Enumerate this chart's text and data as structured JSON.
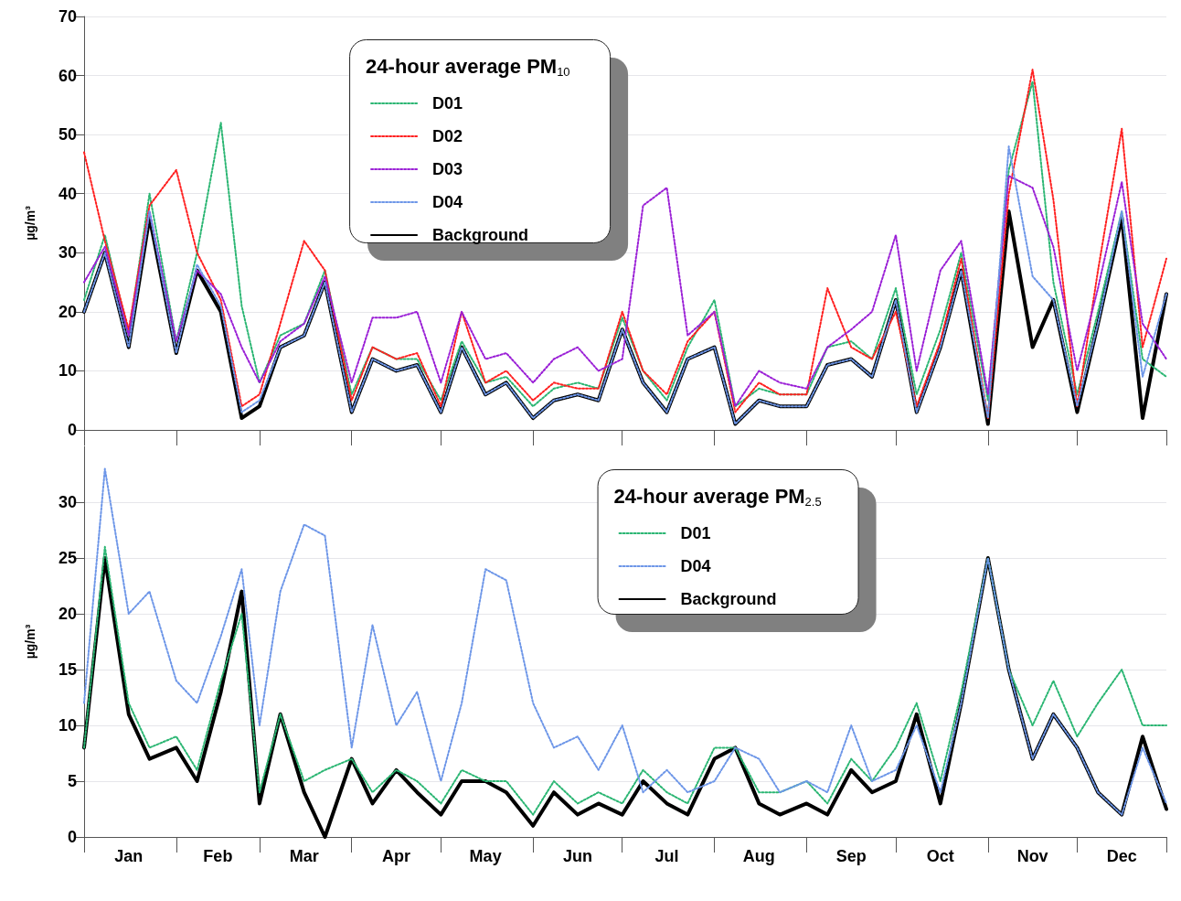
{
  "chart_data": [
    {
      "type": "line",
      "ylabel": "µg/m³",
      "legend_title": "24-hour average PM$_{10}$",
      "legend": "top",
      "grid": "y",
      "tick_labels": "y",
      "x": [
        "--01-01",
        "--01-08",
        "--01-16",
        "--01-23",
        "--02-01",
        "--02-08",
        "--02-16",
        "--02-23",
        "--03-01",
        "--03-08",
        "--03-16",
        "--03-23",
        "--04-01",
        "--04-08",
        "--04-16",
        "--04-23",
        "--05-01",
        "--05-08",
        "--05-16",
        "--05-23",
        "--06-01",
        "--06-08",
        "--06-16",
        "--06-23",
        "--07-01",
        "--07-08",
        "--07-16",
        "--07-23",
        "--08-01",
        "--08-08",
        "--08-16",
        "--08-23",
        "--09-01",
        "--09-08",
        "--09-16",
        "--09-23",
        "--10-01",
        "--10-08",
        "--10-16",
        "--10-23",
        "--11-01",
        "--11-08",
        "--11-16",
        "--11-23",
        "--12-01",
        "--12-08",
        "--12-16",
        "--12-23",
        "--12-31"
      ],
      "xlim": [
        "--01-01",
        "--12-31"
      ],
      "ylim": [
        0,
        70
      ],
      "yticks": [
        0,
        10,
        20,
        30,
        40,
        50,
        60,
        70
      ],
      "series": [
        {
          "name": "D01",
          "color": "#2bb673",
          "line_style": "dotted",
          "values": [
            22,
            33,
            16,
            40,
            15,
            30,
            52,
            21,
            8,
            16,
            18,
            27,
            6,
            14,
            12,
            12,
            5,
            15,
            8,
            9,
            4,
            7,
            8,
            7,
            19,
            10,
            5,
            14,
            22,
            4,
            7,
            6,
            6,
            14,
            15,
            12,
            24,
            6,
            17,
            30,
            5,
            44,
            59,
            25,
            6,
            20,
            37,
            12,
            9
          ]
        },
        {
          "name": "D02",
          "color": "#ff1f1f",
          "line_style": "dotted",
          "values": [
            47,
            32,
            17,
            38,
            44,
            30,
            22,
            4,
            6,
            18,
            32,
            27,
            5,
            14,
            12,
            13,
            4,
            20,
            8,
            10,
            5,
            8,
            7,
            7,
            20,
            10,
            6,
            15,
            20,
            3,
            8,
            6,
            6,
            24,
            14,
            12,
            20,
            4,
            15,
            29,
            2,
            40,
            61,
            39,
            4,
            27,
            51,
            14,
            29
          ]
        },
        {
          "name": "D03",
          "color": "#9a1fd6",
          "line_style": "dotted",
          "values": [
            25,
            31,
            16,
            37,
            15,
            27,
            23,
            14,
            8,
            15,
            18,
            26,
            8,
            19,
            19,
            20,
            8,
            20,
            12,
            13,
            8,
            12,
            14,
            10,
            12,
            38,
            41,
            16,
            20,
            4,
            10,
            8,
            7,
            14,
            17,
            20,
            33,
            10,
            27,
            32,
            6,
            43,
            41,
            31,
            10,
            24,
            42,
            18,
            12
          ]
        },
        {
          "name": "D04",
          "color": "#6d96e8",
          "line_style": "dotted",
          "values": [
            20,
            30,
            14,
            37,
            13,
            28,
            21,
            3,
            5,
            14,
            16,
            25,
            3,
            12,
            10,
            11,
            3,
            14,
            6,
            8,
            2,
            5,
            6,
            5,
            17,
            8,
            3,
            12,
            14,
            1,
            5,
            4,
            4,
            11,
            12,
            9,
            22,
            3,
            14,
            27,
            2,
            48,
            26,
            22,
            4,
            18,
            37,
            9,
            23
          ]
        },
        {
          "name": "Background",
          "color": "#000000",
          "line_style": "solid",
          "values": [
            20,
            30,
            14,
            36,
            13,
            27,
            20,
            2,
            4,
            14,
            16,
            25,
            3,
            12,
            10,
            11,
            3,
            14,
            6,
            8,
            2,
            5,
            6,
            5,
            17,
            8,
            3,
            12,
            14,
            1,
            5,
            4,
            4,
            11,
            12,
            9,
            22,
            3,
            14,
            27,
            1,
            37,
            14,
            22,
            3,
            18,
            36,
            2,
            23
          ]
        }
      ]
    },
    {
      "type": "line",
      "ylabel": "µg/m³",
      "legend_title": "24-hour average PM$_{2.5}$",
      "legend": "top right",
      "grid": "y",
      "x": [
        "--01-01",
        "--01-08",
        "--01-16",
        "--01-23",
        "--02-01",
        "--02-08",
        "--02-16",
        "--02-23",
        "--03-01",
        "--03-08",
        "--03-16",
        "--03-23",
        "--04-01",
        "--04-08",
        "--04-16",
        "--04-23",
        "--05-01",
        "--05-08",
        "--05-16",
        "--05-23",
        "--06-01",
        "--06-08",
        "--06-16",
        "--06-23",
        "--07-01",
        "--07-08",
        "--07-16",
        "--07-23",
        "--08-01",
        "--08-08",
        "--08-16",
        "--08-23",
        "--09-01",
        "--09-08",
        "--09-16",
        "--09-23",
        "--10-01",
        "--10-08",
        "--10-16",
        "--10-23",
        "--11-01",
        "--11-08",
        "--11-16",
        "--11-23",
        "--12-01",
        "--12-08",
        "--12-16",
        "--12-23",
        "--12-31"
      ],
      "xlim": [
        "--01-01",
        "--12-31"
      ],
      "xticks": [
        {
          "value": "--01-16",
          "label": "Jan"
        },
        {
          "value": "--02-15",
          "label": "Feb"
        },
        {
          "value": "--03-16",
          "label": "Mar"
        },
        {
          "value": "--04-16",
          "label": "Apr"
        },
        {
          "value": "--05-16",
          "label": "May"
        },
        {
          "value": "--06-16",
          "label": "Jun"
        },
        {
          "value": "--07-16",
          "label": "Jul"
        },
        {
          "value": "--08-16",
          "label": "Aug"
        },
        {
          "value": "--09-16",
          "label": "Sep"
        },
        {
          "value": "--10-16",
          "label": "Oct"
        },
        {
          "value": "--11-16",
          "label": "Nov"
        },
        {
          "value": "--12-16",
          "label": "Dec"
        }
      ],
      "ylim": [
        0,
        35
      ],
      "yticks": [
        0,
        5,
        10,
        15,
        20,
        25,
        30
      ],
      "series": [
        {
          "name": "D01",
          "color": "#2bb673",
          "line_style": "dotted",
          "values": [
            8,
            26,
            12,
            8,
            9,
            6,
            14,
            20,
            4,
            11,
            5,
            6,
            7,
            4,
            6,
            5,
            3,
            6,
            5,
            5,
            2,
            5,
            3,
            4,
            3,
            6,
            4,
            3,
            8,
            8,
            4,
            4,
            5,
            3,
            7,
            5,
            8,
            12,
            5,
            13,
            25,
            15,
            10,
            14,
            9,
            12,
            15,
            10,
            10
          ]
        },
        {
          "name": "D04",
          "color": "#6d96e8",
          "line_style": "dotted",
          "values": [
            12,
            33,
            20,
            22,
            14,
            12,
            18,
            24,
            10,
            22,
            28,
            27,
            8,
            19,
            10,
            13,
            5,
            12,
            24,
            23,
            12,
            8,
            9,
            6,
            10,
            4,
            6,
            4,
            5,
            8,
            7,
            4,
            5,
            4,
            10,
            5,
            6,
            10,
            4,
            12,
            25,
            15,
            7,
            11,
            8,
            4,
            2,
            8,
            3
          ]
        },
        {
          "name": "Background",
          "color": "#000000",
          "line_style": "solid",
          "values": [
            8,
            25,
            11,
            7,
            8,
            5,
            13,
            22,
            3,
            11,
            4,
            0,
            7,
            3,
            6,
            4,
            2,
            5,
            5,
            4,
            1,
            4,
            2,
            3,
            2,
            5,
            3,
            2,
            7,
            8,
            3,
            2,
            3,
            2,
            6,
            4,
            5,
            11,
            3,
            12,
            25,
            15,
            7,
            11,
            8,
            4,
            2,
            9,
            2.5
          ]
        }
      ]
    }
  ]
}
